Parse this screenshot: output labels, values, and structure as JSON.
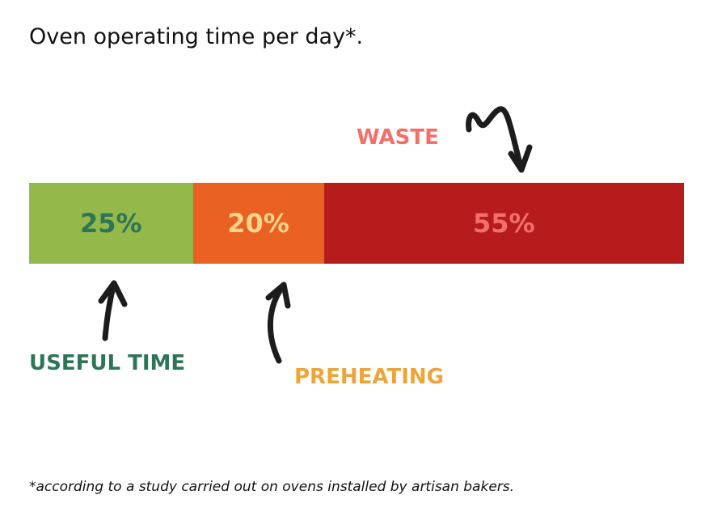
{
  "chart_data": {
    "type": "bar",
    "orientation": "horizontal-stacked",
    "title": "Oven operating time per day*.",
    "categories": [
      "USEFUL TIME",
      "PREHEATING",
      "WASTE"
    ],
    "values": [
      25,
      20,
      55
    ],
    "value_labels": [
      "25%",
      "20%",
      "55%"
    ],
    "unit": "%",
    "colors": {
      "segments": [
        "#94b84a",
        "#ea6124",
        "#b71c1c"
      ],
      "value_text": [
        "#2e7558",
        "#fcd58a",
        "#f2706a"
      ],
      "category_text": [
        "#2e7558",
        "#eba53a",
        "#f2706a"
      ]
    },
    "footnote": "*according to a study carried out on ovens installed by artisan bakers."
  }
}
